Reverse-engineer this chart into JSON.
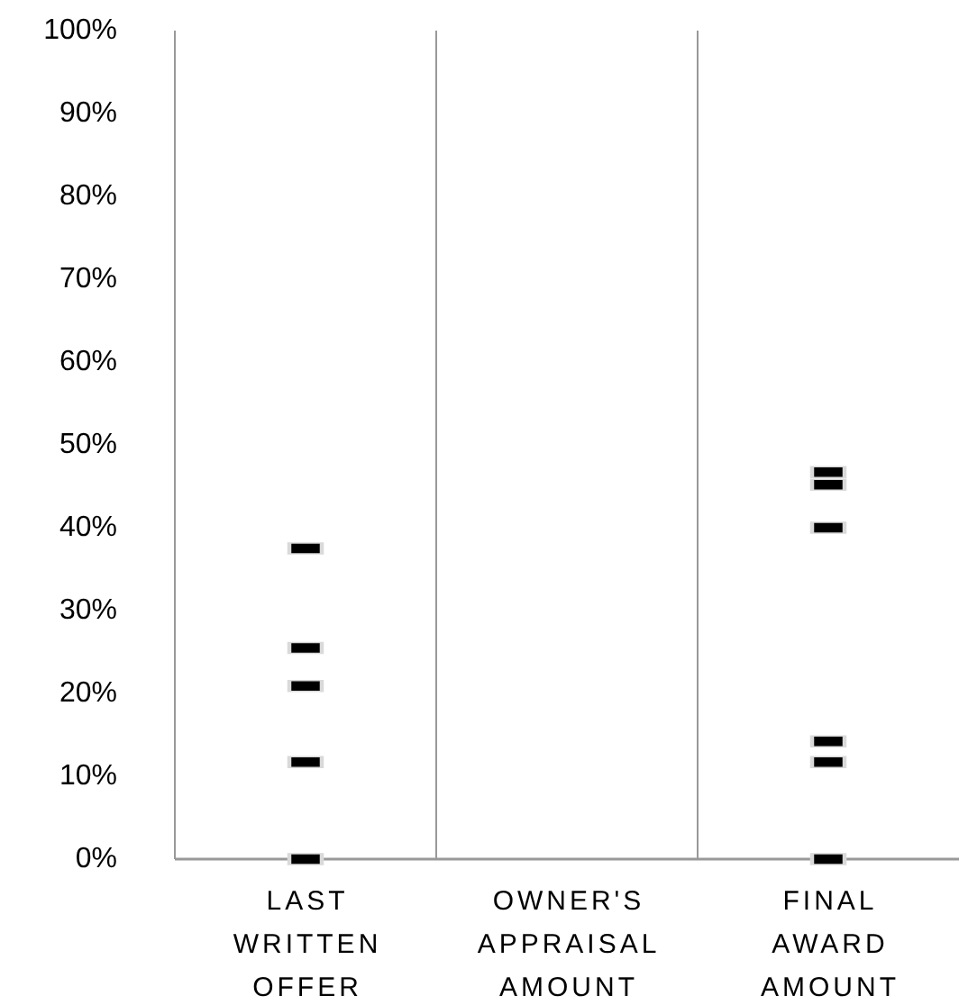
{
  "chart_data": {
    "type": "scatter",
    "categories": [
      "LAST WRITTEN OFFER",
      "OWNER'S APPRAISAL AMOUNT",
      "FINAL AWARD AMOUNT"
    ],
    "series": [
      {
        "type": "scatter",
        "color": "#000000",
        "x": [
          "LAST WRITTEN OFFER",
          "LAST WRITTEN OFFER",
          "LAST WRITTEN OFFER",
          "LAST WRITTEN OFFER",
          "LAST WRITTEN OFFER",
          "FINAL AWARD AMOUNT",
          "FINAL AWARD AMOUNT",
          "FINAL AWARD AMOUNT",
          "FINAL AWARD AMOUNT",
          "FINAL AWARD AMOUNT",
          "FINAL AWARD AMOUNT"
        ],
        "values": [
          0,
          11.7,
          20.9,
          25.5,
          37.5,
          0,
          11.7,
          14.2,
          40,
          45.2,
          46.7
        ]
      }
    ],
    "ylim": [
      0,
      100
    ],
    "yticks": [
      {
        "value": 0,
        "label": "0%"
      },
      {
        "value": 10,
        "label": "10%"
      },
      {
        "value": 20,
        "label": "20%"
      },
      {
        "value": 30,
        "label": "30%"
      },
      {
        "value": 40,
        "label": "40%"
      },
      {
        "value": 50,
        "label": "50%"
      },
      {
        "value": 60,
        "label": "60%"
      },
      {
        "value": 70,
        "label": "70%"
      },
      {
        "value": 80,
        "label": "80%"
      },
      {
        "value": 90,
        "label": "90%"
      },
      {
        "value": 100,
        "label": "100%"
      }
    ]
  }
}
